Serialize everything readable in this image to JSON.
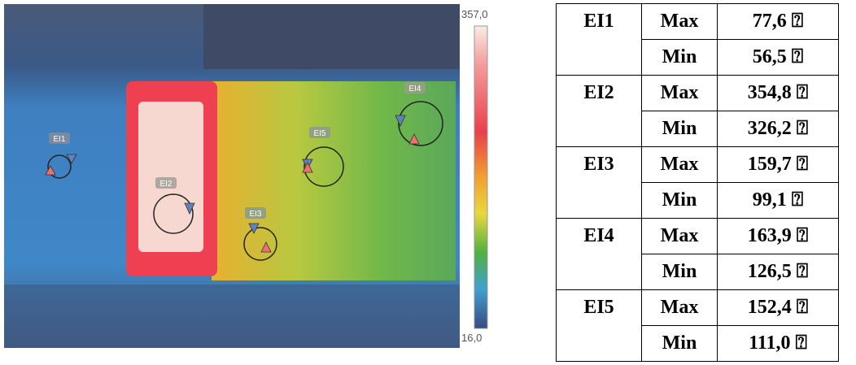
{
  "image": {
    "scale_max": "357,0",
    "scale_min": "16,0",
    "markers": [
      {
        "label": "EI1"
      },
      {
        "label": "EI2"
      },
      {
        "label": "EI3"
      },
      {
        "label": "EI4"
      },
      {
        "label": "EI5"
      }
    ]
  },
  "table": {
    "groups": [
      {
        "name": "EI1",
        "rows": [
          [
            "Max",
            "77,6 ⍰"
          ],
          [
            "Min",
            "56,5 ⍰"
          ]
        ]
      },
      {
        "name": "EI2",
        "rows": [
          [
            "Max",
            "354,8 ⍰"
          ],
          [
            "Min",
            "326,2 ⍰"
          ]
        ]
      },
      {
        "name": "EI3",
        "rows": [
          [
            "Max",
            "159,7 ⍰"
          ],
          [
            "Min",
            "99,1 ⍰"
          ]
        ]
      },
      {
        "name": "EI4",
        "rows": [
          [
            "Max",
            "163,9 ⍰"
          ],
          [
            "Min",
            "126,5 ⍰"
          ]
        ]
      },
      {
        "name": "EI5",
        "rows": [
          [
            "Max",
            "152,4 ⍰"
          ],
          [
            "Min",
            "111,0 ⍰"
          ]
        ]
      }
    ]
  }
}
